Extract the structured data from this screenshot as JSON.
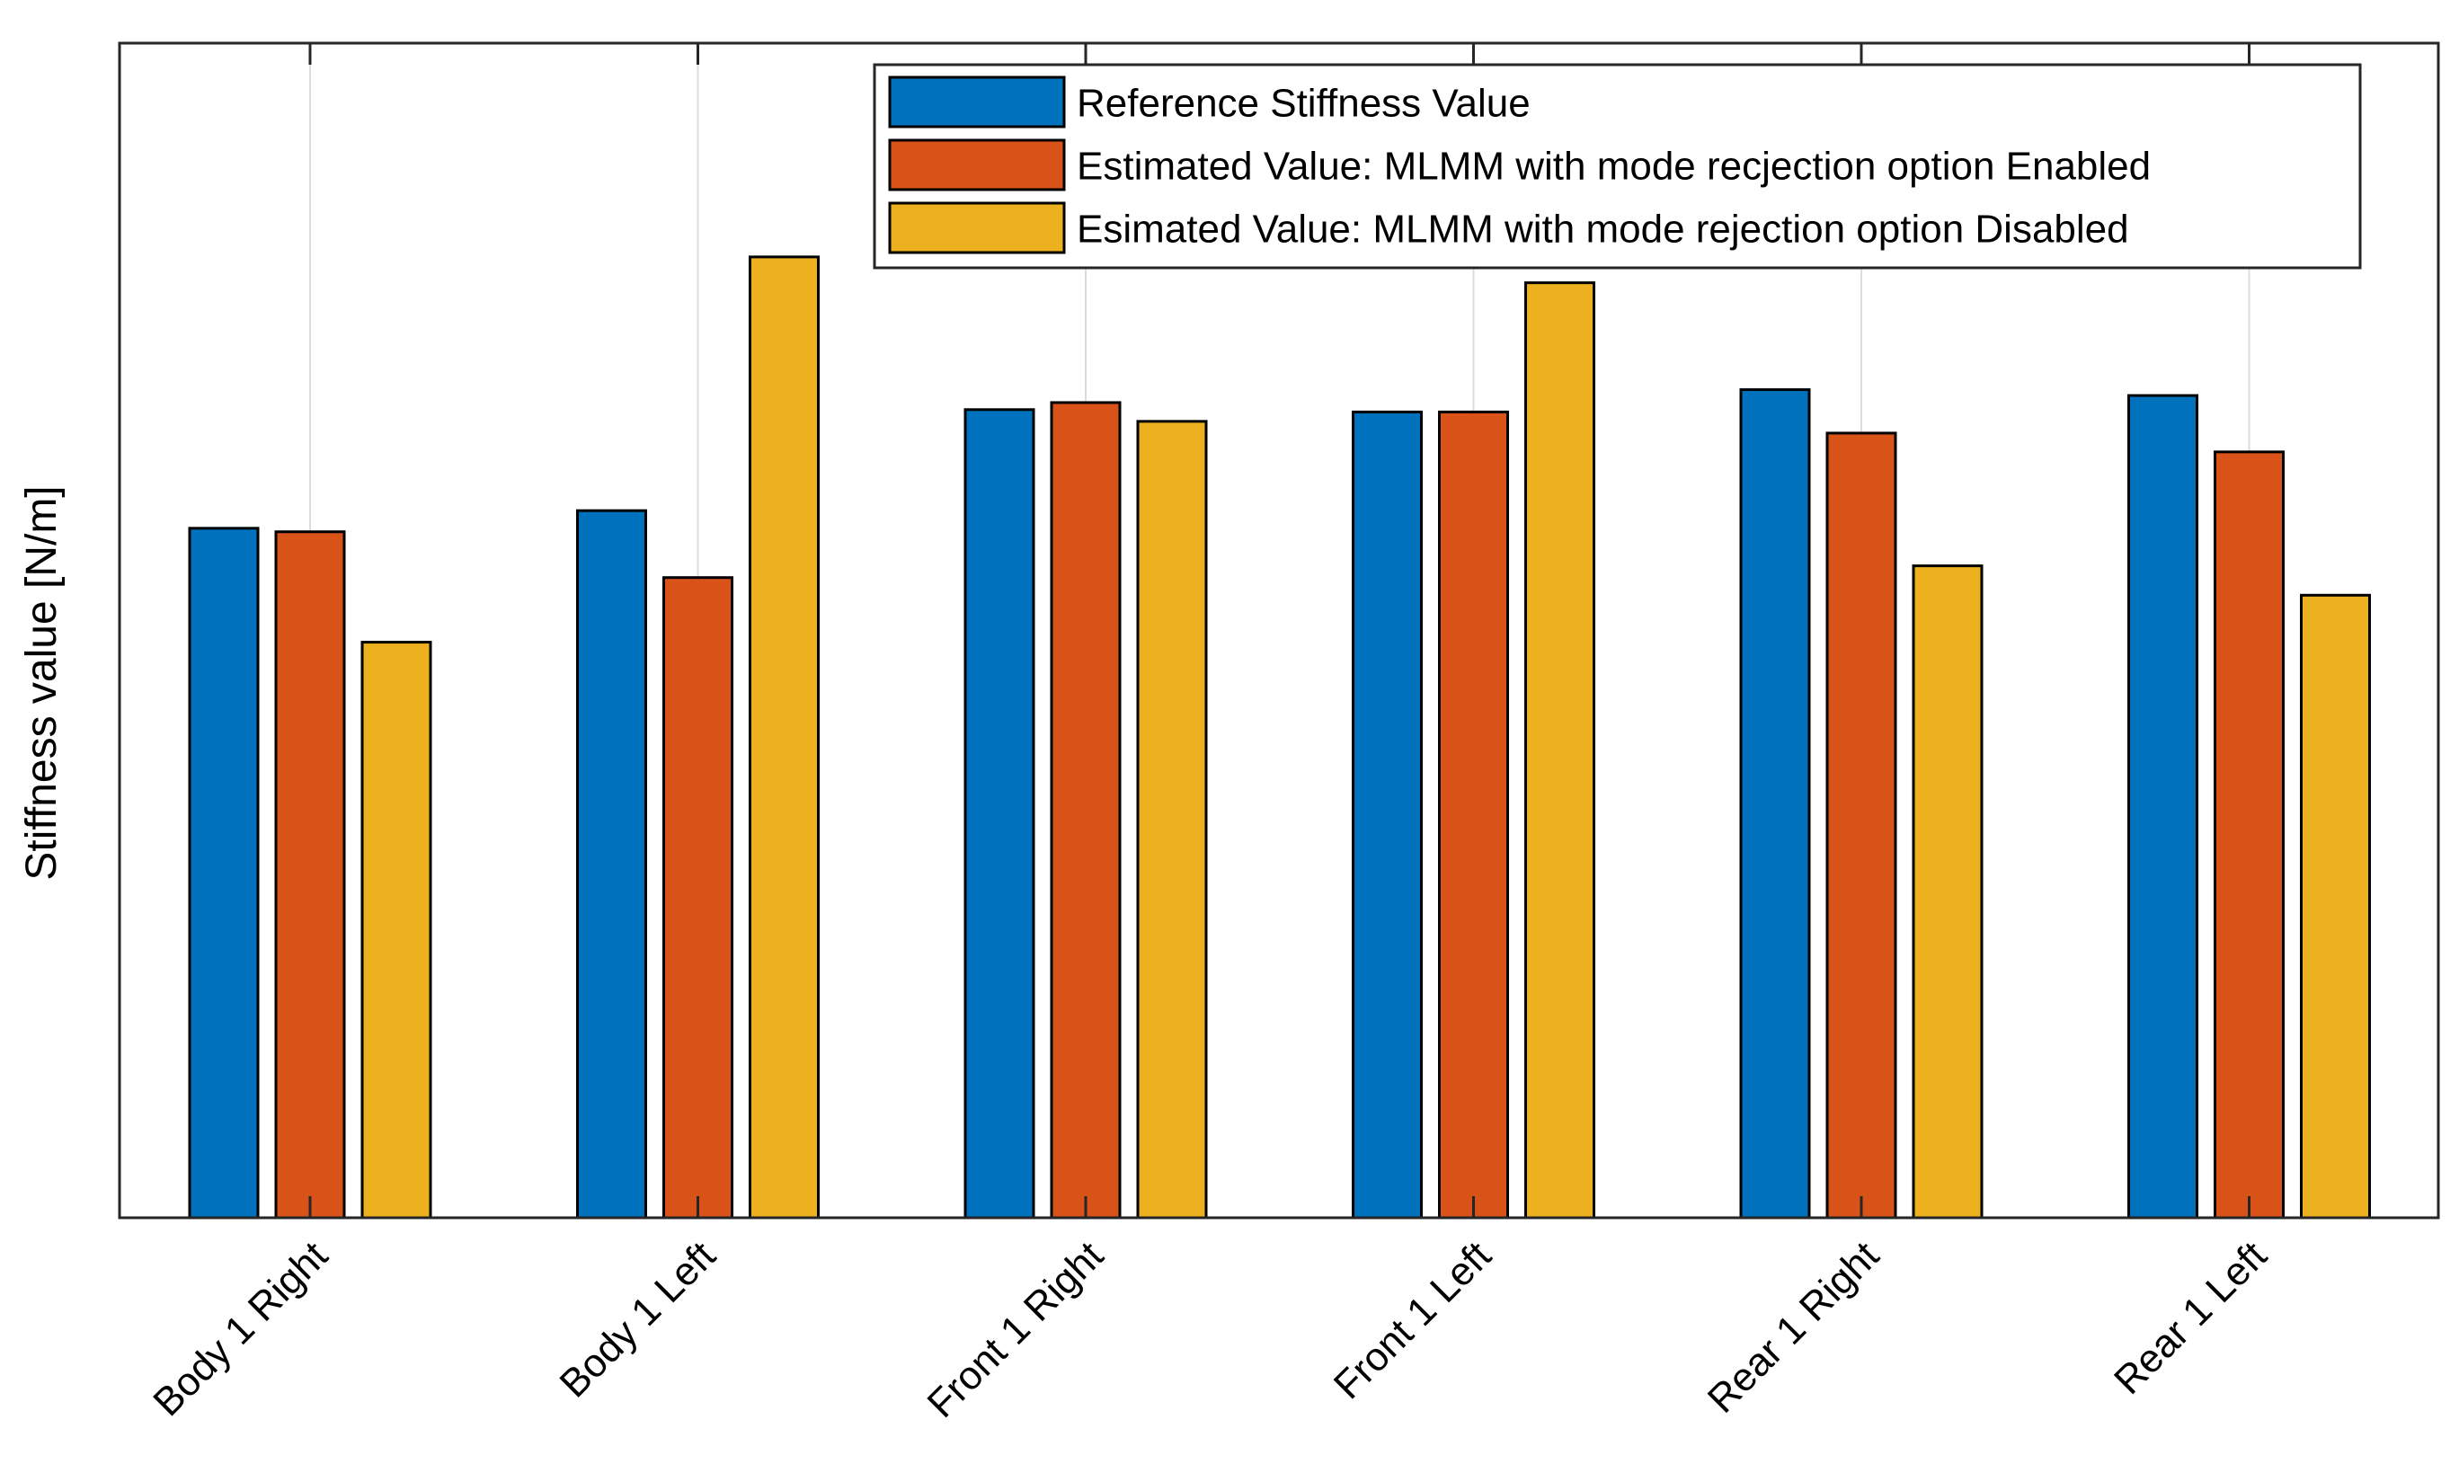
{
  "chart_data": {
    "type": "bar",
    "title": "",
    "xlabel": "",
    "ylabel": "Stiffness value [N/m]",
    "categories": [
      "Body 1 Right",
      "Body 1 Left",
      "Front 1 Right",
      "Front 1 Left",
      "Rear 1 Right",
      "Rear 1 Left"
    ],
    "series": [
      {
        "name": "Reference Stiffness Value",
        "color": "#0072BD",
        "values": [
          0.587,
          0.602,
          0.688,
          0.686,
          0.705,
          0.7
        ]
      },
      {
        "name": "Estimated Value: MLMM with mode recjection option Enabled",
        "color": "#D95319",
        "values": [
          0.584,
          0.545,
          0.694,
          0.686,
          0.668,
          0.652
        ]
      },
      {
        "name": "Esimated Value:  MLMM with mode rejection option Disabled",
        "color": "#EDB120",
        "values": [
          0.49,
          0.818,
          0.678,
          0.796,
          0.555,
          0.53
        ]
      }
    ],
    "ylim": [
      0,
      1
    ],
    "y_ticks_visible": false,
    "grid": "vertical",
    "legend_position": "top-right"
  }
}
